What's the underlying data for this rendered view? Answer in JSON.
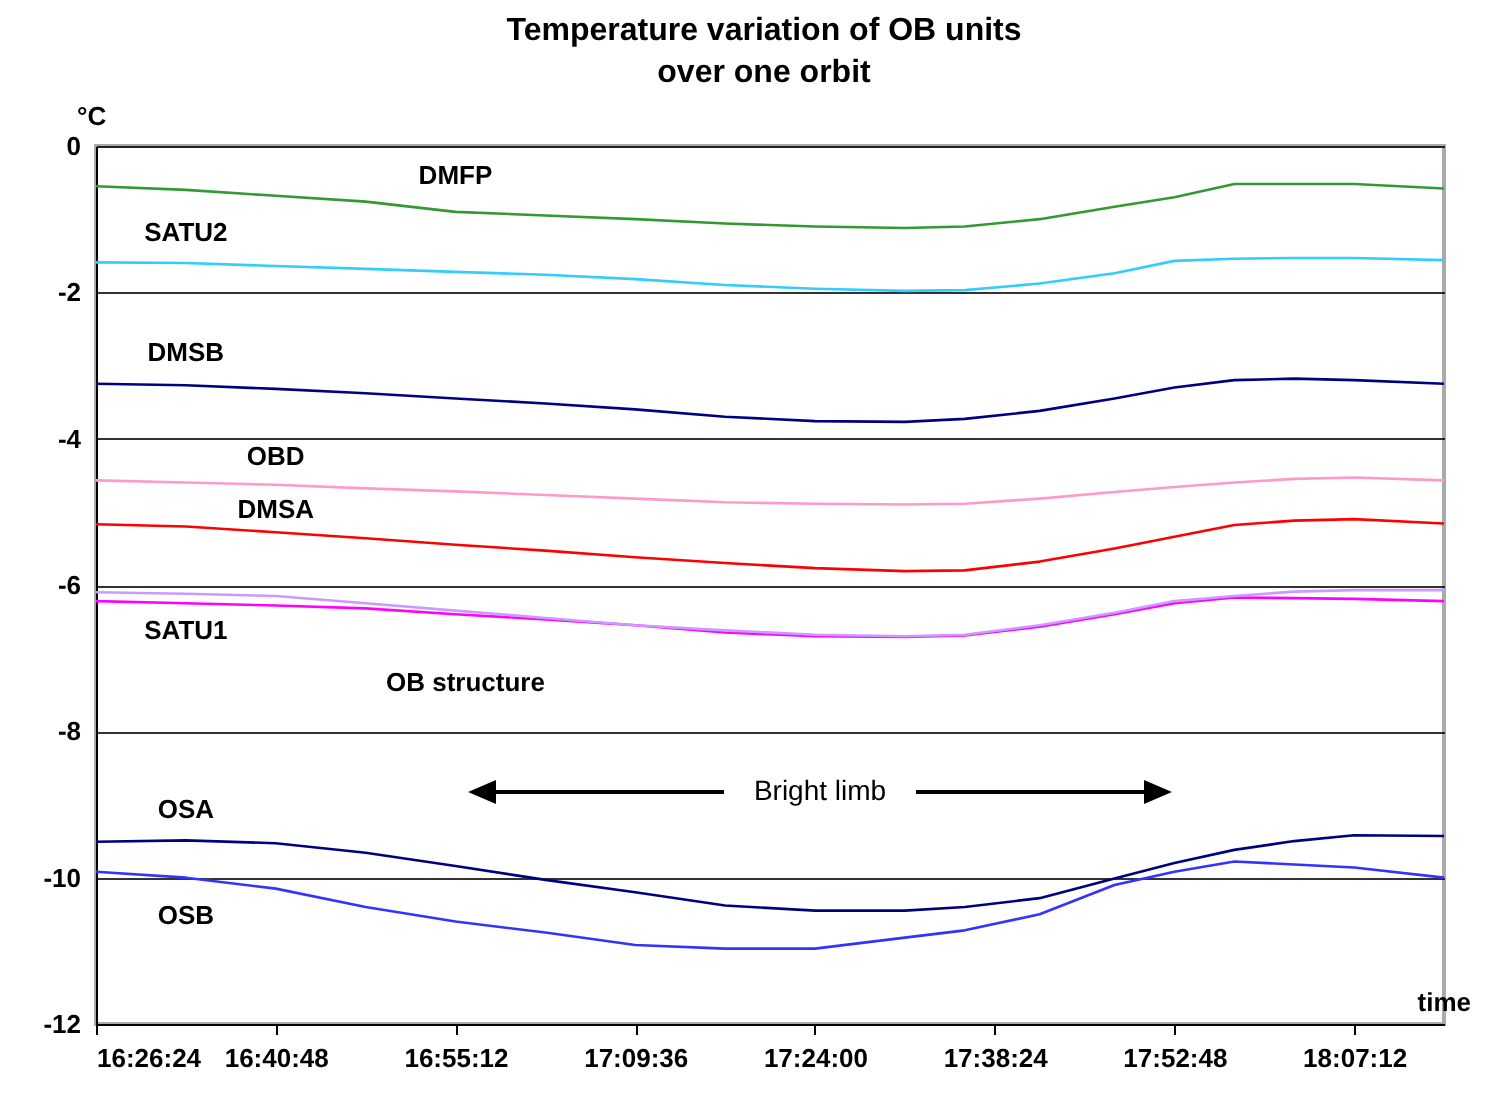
{
  "chart_data": {
    "type": "line",
    "title": "Temperature variation of OB units\nover one orbit",
    "ylabel": "°C",
    "xlabel": "time",
    "x": [
      16.44,
      16.56,
      16.68,
      16.8,
      16.92,
      17.04,
      17.16,
      17.28,
      17.4,
      17.52,
      17.6,
      17.7,
      17.8,
      17.88,
      17.96,
      18.04,
      18.12,
      18.24
    ],
    "series": [
      {
        "name": "DMFP",
        "color": "#339933",
        "values": [
          -0.55,
          -0.6,
          -0.68,
          -0.76,
          -0.9,
          -0.95,
          -1.0,
          -1.06,
          -1.1,
          -1.12,
          -1.1,
          -1.0,
          -0.83,
          -0.7,
          -0.52,
          -0.52,
          -0.52,
          -0.58
        ]
      },
      {
        "name": "SATU2",
        "color": "#33ccff",
        "values": [
          -1.59,
          -1.6,
          -1.64,
          -1.68,
          -1.72,
          -1.76,
          -1.82,
          -1.9,
          -1.95,
          -1.98,
          -1.97,
          -1.88,
          -1.74,
          -1.57,
          -1.54,
          -1.53,
          -1.53,
          -1.56
        ]
      },
      {
        "name": "DMSB",
        "color": "#000080",
        "values": [
          -3.25,
          -3.27,
          -3.32,
          -3.38,
          -3.45,
          -3.52,
          -3.6,
          -3.7,
          -3.76,
          -3.77,
          -3.73,
          -3.62,
          -3.45,
          -3.3,
          -3.2,
          -3.18,
          -3.2,
          -3.25
        ]
      },
      {
        "name": "OBD",
        "color": "#ff99cc",
        "values": [
          -4.57,
          -4.6,
          -4.63,
          -4.68,
          -4.72,
          -4.77,
          -4.82,
          -4.87,
          -4.89,
          -4.9,
          -4.89,
          -4.82,
          -4.73,
          -4.66,
          -4.6,
          -4.55,
          -4.53,
          -4.57
        ]
      },
      {
        "name": "DMSA",
        "color": "#ff0000",
        "values": [
          -5.17,
          -5.2,
          -5.28,
          -5.36,
          -5.45,
          -5.53,
          -5.62,
          -5.7,
          -5.77,
          -5.81,
          -5.8,
          -5.68,
          -5.5,
          -5.34,
          -5.18,
          -5.12,
          -5.1,
          -5.16
        ]
      },
      {
        "name": "SATU1",
        "color": "#ff00ff",
        "values": [
          -6.22,
          -6.25,
          -6.28,
          -6.32,
          -6.4,
          -6.47,
          -6.55,
          -6.65,
          -6.7,
          -6.71,
          -6.69,
          -6.57,
          -6.4,
          -6.25,
          -6.17,
          -6.18,
          -6.19,
          -6.22
        ]
      },
      {
        "name": "OB structure",
        "color": "#cc99ff",
        "values": [
          -6.1,
          -6.12,
          -6.15,
          -6.25,
          -6.35,
          -6.45,
          -6.55,
          -6.62,
          -6.68,
          -6.7,
          -6.68,
          -6.55,
          -6.38,
          -6.22,
          -6.15,
          -6.09,
          -6.07,
          -6.07
        ]
      },
      {
        "name": "OSA",
        "color": "#000080",
        "values": [
          -9.51,
          -9.49,
          -9.53,
          -9.66,
          -9.84,
          -10.03,
          -10.2,
          -10.38,
          -10.45,
          -10.45,
          -10.4,
          -10.28,
          -10.01,
          -9.8,
          -9.62,
          -9.5,
          -9.42,
          -9.43
        ]
      },
      {
        "name": "OSB",
        "color": "#3333ff",
        "values": [
          -9.92,
          -10.0,
          -10.15,
          -10.4,
          -10.6,
          -10.75,
          -10.92,
          -10.97,
          -10.97,
          -10.82,
          -10.72,
          -10.5,
          -10.1,
          -9.92,
          -9.78,
          -9.82,
          -9.86,
          -10.0
        ]
      }
    ],
    "xlim": [
      16.44,
      18.24
    ],
    "xticks": [
      {
        "value": 16.44,
        "label": "16:26:24"
      },
      {
        "value": 16.68,
        "label": "16:40:48"
      },
      {
        "value": 16.92,
        "label": "16:55:12"
      },
      {
        "value": 17.16,
        "label": "17:09:36"
      },
      {
        "value": 17.4,
        "label": "17:24:00"
      },
      {
        "value": 17.64,
        "label": "17:38:24"
      },
      {
        "value": 17.88,
        "label": "17:52:48"
      },
      {
        "value": 18.12,
        "label": "18:07:12"
      }
    ],
    "ylim": [
      -12,
      0
    ],
    "yticks": [
      -12,
      -10,
      -8,
      -6,
      -4,
      -2,
      0
    ],
    "grid": "y",
    "legend": false,
    "annotations": [
      "Bright limb"
    ]
  }
}
